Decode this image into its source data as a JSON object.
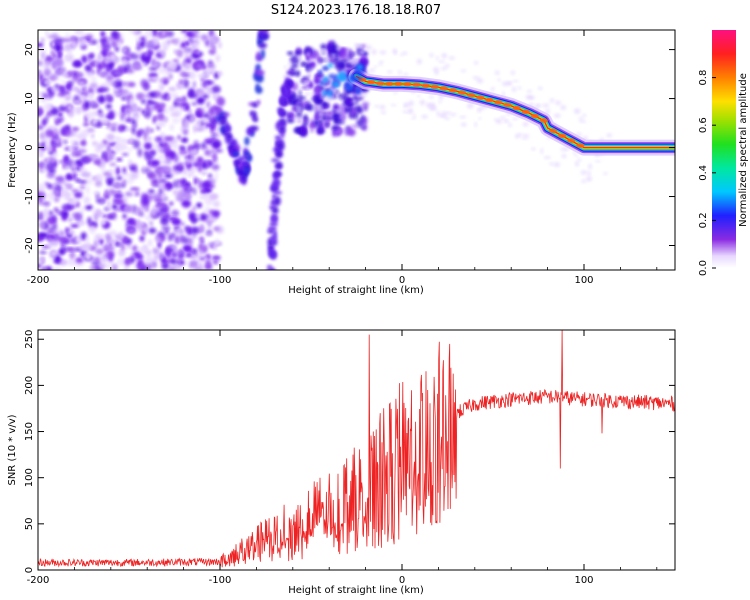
{
  "title": "S124.2023.176.18.18.R07",
  "chart_data": [
    {
      "type": "heatmap",
      "xlabel": "Height of straight line (km)",
      "ylabel": "Frequency (Hz)",
      "xlim": [
        -200,
        150
      ],
      "ylim": [
        -25,
        24
      ],
      "x_ticks": [
        -200,
        -100,
        0,
        100
      ],
      "y_ticks": [
        -20,
        -10,
        0,
        10,
        20
      ],
      "colorbar": {
        "label": "Normalized spectral amplitude",
        "range": [
          0,
          1
        ],
        "ticks": [
          0.0,
          0.2,
          0.4,
          0.6,
          0.8
        ],
        "colormap": "hsv-rainbow (white-violet-blue-cyan-green-yellow-orange-red-magenta)"
      },
      "features": {
        "noise_region_x": [
          -200,
          -100
        ],
        "dip_trace_points": [
          [
            -100,
            8
          ],
          [
            -95,
            2
          ],
          [
            -90,
            -3
          ],
          [
            -87,
            -6
          ],
          [
            -85,
            -2
          ],
          [
            -80,
            10
          ],
          [
            -77,
            22
          ],
          [
            -75,
            24
          ]
        ],
        "rising_trace_points": [
          [
            -72,
            -25
          ],
          [
            -70,
            -12
          ],
          [
            -68,
            0
          ],
          [
            -65,
            10
          ],
          [
            -62,
            13
          ]
        ],
        "main_line_points": [
          [
            -60,
            12
          ],
          [
            -40,
            13
          ],
          [
            -25,
            14.5
          ],
          [
            -20,
            13.5
          ],
          [
            -10,
            13
          ],
          [
            0,
            13
          ],
          [
            10,
            12.8
          ],
          [
            20,
            12.3
          ],
          [
            30,
            11.5
          ],
          [
            40,
            10.5
          ],
          [
            50,
            9.5
          ],
          [
            60,
            8.5
          ],
          [
            70,
            7
          ],
          [
            78,
            5.5
          ],
          [
            80,
            4
          ],
          [
            85,
            3
          ],
          [
            90,
            2
          ],
          [
            95,
            1
          ],
          [
            100,
            0
          ],
          [
            110,
            0
          ],
          [
            120,
            0
          ],
          [
            130,
            0
          ],
          [
            140,
            0
          ],
          [
            150,
            0
          ]
        ]
      }
    },
    {
      "type": "line",
      "xlabel": "Height of straight line (km)",
      "ylabel": "SNR (10 * v/v)",
      "xlim": [
        -200,
        150
      ],
      "ylim": [
        0,
        260
      ],
      "x_ticks": [
        -200,
        -100,
        0,
        100
      ],
      "y_ticks": [
        0,
        50,
        100,
        150,
        200,
        250
      ],
      "series_color": "#ee2222",
      "series": [
        {
          "envelope_points": [
            [
              -200,
              8
            ],
            [
              -150,
              8
            ],
            [
              -100,
              9
            ],
            [
              -90,
              20
            ],
            [
              -80,
              30
            ],
            [
              -70,
              40
            ],
            [
              -60,
              50
            ],
            [
              -50,
              60
            ],
            [
              -40,
              70
            ],
            [
              -30,
              80
            ],
            [
              -20,
              90
            ],
            [
              -15,
              100
            ],
            [
              -10,
              110
            ],
            [
              -5,
              120
            ],
            [
              0,
              130
            ],
            [
              10,
              140
            ],
            [
              20,
              155
            ],
            [
              30,
              170
            ],
            [
              40,
              180
            ],
            [
              60,
              185
            ],
            [
              80,
              188
            ],
            [
              100,
              185
            ],
            [
              120,
              183
            ],
            [
              150,
              180
            ]
          ],
          "spikes": [
            [
              -18,
              255
            ],
            [
              -12,
              170
            ],
            [
              12,
              50
            ],
            [
              14,
              195
            ],
            [
              88,
              260
            ],
            [
              87,
              110
            ],
            [
              110,
              148
            ]
          ]
        }
      ]
    }
  ]
}
